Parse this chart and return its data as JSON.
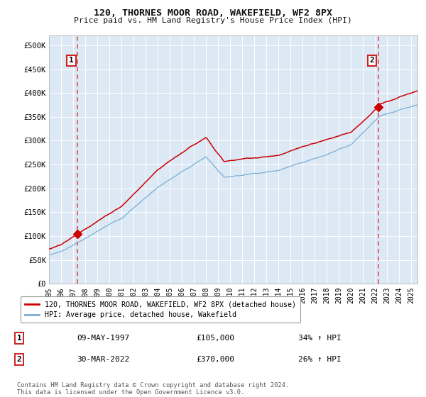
{
  "title": "120, THORNES MOOR ROAD, WAKEFIELD, WF2 8PX",
  "subtitle": "Price paid vs. HM Land Registry's House Price Index (HPI)",
  "fig_bg_color": "#ffffff",
  "plot_bg_color": "#dce9f5",
  "hpi_color": "#7aadd4",
  "price_color": "#cc0000",
  "dashed_color": "#dd4444",
  "ylim": [
    0,
    520000
  ],
  "yticks": [
    0,
    50000,
    100000,
    150000,
    200000,
    250000,
    300000,
    350000,
    400000,
    450000,
    500000
  ],
  "ytick_labels": [
    "£0",
    "£50K",
    "£100K",
    "£150K",
    "£200K",
    "£250K",
    "£300K",
    "£350K",
    "£400K",
    "£450K",
    "£500K"
  ],
  "xstart": 1995.0,
  "xend": 2025.5,
  "sale1_x": 1997.36,
  "sale1_y": 105000,
  "sale2_x": 2022.25,
  "sale2_y": 370000,
  "legend_line1": "120, THORNES MOOR ROAD, WAKEFIELD, WF2 8PX (detached house)",
  "legend_line2": "HPI: Average price, detached house, Wakefield",
  "annotation1_date": "09-MAY-1997",
  "annotation1_price": "£105,000",
  "annotation1_hpi": "34% ↑ HPI",
  "annotation2_date": "30-MAR-2022",
  "annotation2_price": "£370,000",
  "annotation2_hpi": "26% ↑ HPI",
  "footnote": "Contains HM Land Registry data © Crown copyright and database right 2024.\nThis data is licensed under the Open Government Licence v3.0.",
  "xtick_years": [
    1995,
    1996,
    1997,
    1998,
    1999,
    2000,
    2001,
    2002,
    2003,
    2004,
    2005,
    2006,
    2007,
    2008,
    2009,
    2010,
    2011,
    2012,
    2013,
    2014,
    2015,
    2016,
    2017,
    2018,
    2019,
    2020,
    2021,
    2022,
    2023,
    2024,
    2025
  ]
}
